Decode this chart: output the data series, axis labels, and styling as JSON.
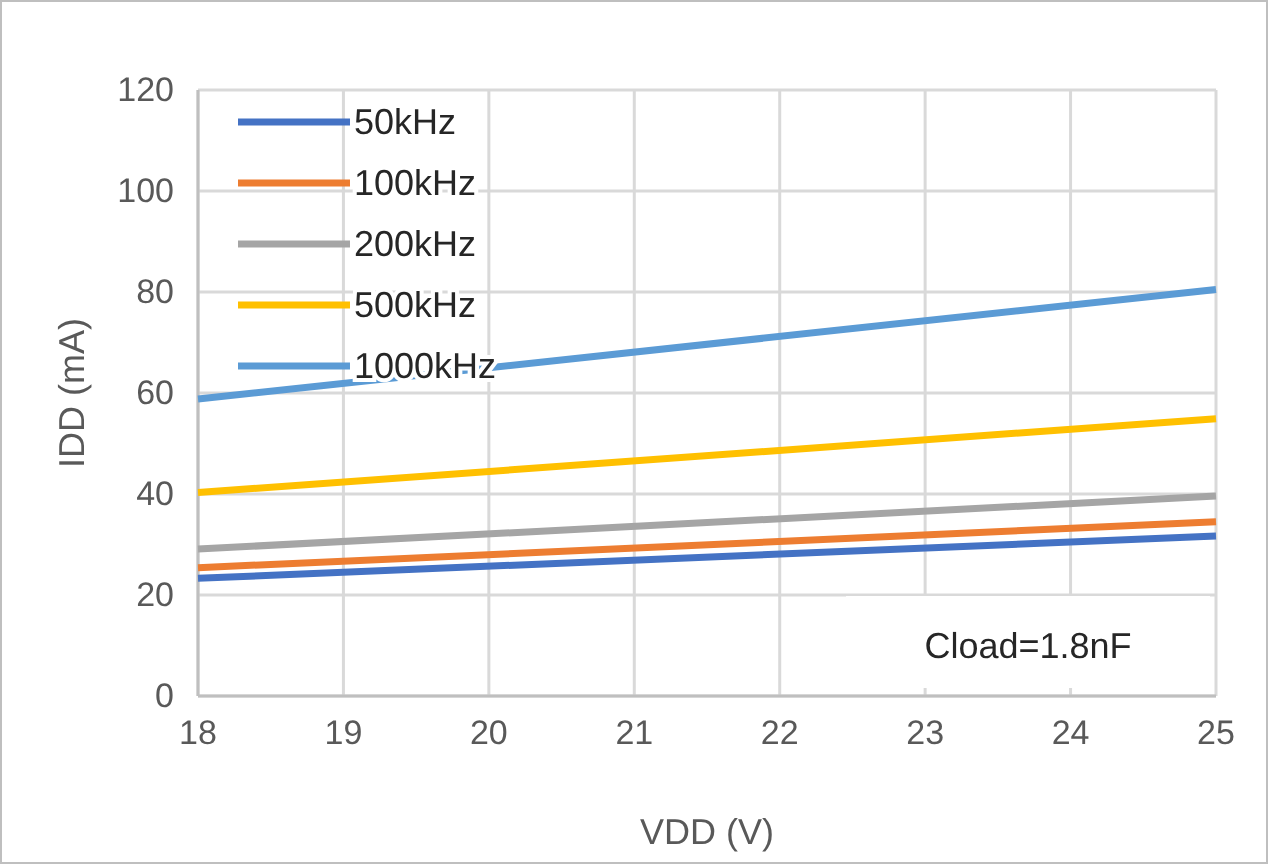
{
  "chart_data": {
    "type": "line",
    "xlabel": "VDD (V)",
    "ylabel": "IDD (mA)",
    "x": [
      18,
      25
    ],
    "xlim": [
      18,
      25
    ],
    "xticks": [
      18,
      19,
      20,
      21,
      22,
      23,
      24,
      25
    ],
    "ylim": [
      0,
      120
    ],
    "yticks": [
      0,
      20,
      40,
      60,
      80,
      100,
      120
    ],
    "grid": true,
    "legend": "top left",
    "line_style": "solid",
    "marker": "none",
    "annotations": [
      "Cload=1.8nF"
    ],
    "series": [
      {
        "name": "50kHz",
        "color": "#4472c4",
        "values": [
          23.3,
          31.7
        ]
      },
      {
        "name": "100kHz",
        "color": "#ed7d31",
        "values": [
          25.4,
          34.5
        ]
      },
      {
        "name": "200kHz",
        "color": "#a5a5a5",
        "values": [
          29.1,
          39.6
        ]
      },
      {
        "name": "500kHz",
        "color": "#ffc000",
        "values": [
          40.3,
          54.9
        ]
      },
      {
        "name": "1000kHz",
        "color": "#5b9bd5",
        "values": [
          58.8,
          80.5
        ]
      }
    ]
  }
}
